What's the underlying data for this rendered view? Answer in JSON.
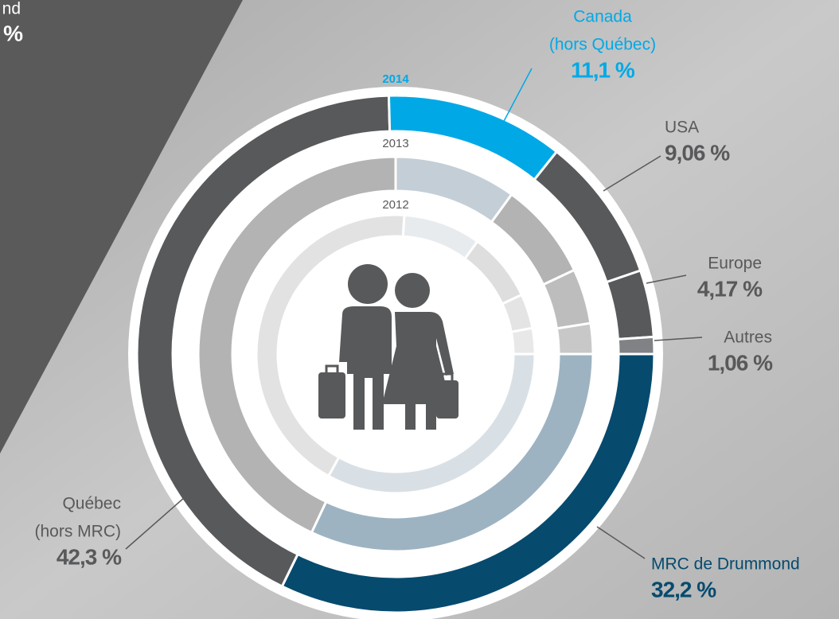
{
  "chart_data": {
    "type": "donut",
    "categories": [
      [
        "MRC de Drummond"
      ],
      [
        "Québec",
        "(hors MRC)"
      ],
      [
        "Canada",
        "(hors Québec)"
      ],
      [
        "USA"
      ],
      [
        "Europe"
      ],
      [
        "Autres"
      ]
    ],
    "series": [
      {
        "name": "2014",
        "values": [
          32.2,
          42.3,
          11.1,
          9.06,
          4.17,
          1.06
        ],
        "value_labels": [
          "32,2 %",
          "42,3 %",
          "11,1 %",
          "9,06 %",
          "4,17 %",
          "1,06 %"
        ],
        "colors": [
          "#064a6e",
          "#58595b",
          "#00a9e6",
          "#58595b",
          "#58595b",
          "#808285"
        ],
        "name_color": "#00a9e6"
      },
      {
        "name": "2013",
        "values": [
          32,
          43,
          10,
          8,
          4.5,
          2.5
        ],
        "colors": [
          "#9db3c2",
          "#b3b3b3",
          "#c4ced6",
          "#b3b3b3",
          "#bdbdbd",
          "#c8c8c8"
        ],
        "name_color": "#58595b"
      },
      {
        "name": "2012",
        "values": [
          33,
          43,
          9,
          8,
          4,
          3
        ],
        "colors": [
          "#d9e0e5",
          "#e2e2e2",
          "#e8ebee",
          "#dedede",
          "#e4e4e4",
          "#e8e8e8"
        ],
        "name_color": "#58595b"
      }
    ],
    "label_colors": [
      "#064a6e",
      "#58595b",
      "#00a9e6",
      "#58595b",
      "#58595b",
      "#58595b"
    ],
    "side_panel": {
      "label": "nd",
      "value_label": "%"
    }
  }
}
